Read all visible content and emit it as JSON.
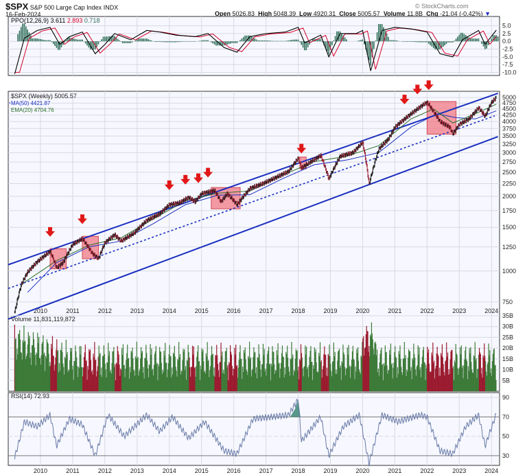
{
  "header": {
    "symbol": "$SPX",
    "name": "S&P 500 Large Cap Index",
    "exchange": "INDX",
    "date": "16-Feb-2024",
    "open_label": "Open",
    "open": "5026.83",
    "high_label": "High",
    "high": "5048.39",
    "low_label": "Low",
    "low": "4920.31",
    "close_label": "Close",
    "close": "5005.57",
    "volume_label": "Volume",
    "volume": "11.8B",
    "chg_label": "Chg",
    "chg": "-21.04 (-0.42%)",
    "watermark": "© StockCharts.com"
  },
  "ppo_panel": {
    "label": "PPO(12,26,9)",
    "v1": "3.611",
    "v2": "2.893",
    "v3": "0.718"
  },
  "price_panel": {
    "label": "$SPX (Weekly) 5005.57",
    "ma_label": "MA(50) 4421.87",
    "ema_label": "EMA(20) 4704.76"
  },
  "volume_panel": {
    "label": "Volume 11,831,119,872"
  },
  "rsi_panel": {
    "label": "RSI(14) 72.93"
  },
  "colors": {
    "up": "#3c7a38",
    "down": "#9b1b2f",
    "channel": "#1a2fbf",
    "arrow": "#e01818",
    "box": "#f07a84",
    "ppo": "#000000",
    "signal": "#d6002a",
    "hist": "#2f6e58",
    "rsi": "#6678a6",
    "rsi_fill": "#2f7f6f",
    "ma": "#1a2fbf",
    "ema": "#2a6e2a"
  },
  "chart_data": {
    "type": "line",
    "x_ticks": [
      "2010",
      "2011",
      "2012",
      "2013",
      "2014",
      "2015",
      "2016",
      "2017",
      "2018",
      "2019",
      "2020",
      "2021",
      "2022",
      "2023",
      "2024"
    ],
    "price": {
      "scale": "log",
      "ylim": [
        660,
        5300
      ],
      "y_ticks": [
        "750",
        "1000",
        "1250",
        "1500",
        "1750",
        "2000",
        "2250",
        "2500",
        "2750",
        "3000",
        "3250",
        "3500",
        "3750",
        "4000",
        "4250",
        "4500",
        "4750",
        "5000"
      ],
      "series": [
        {
          "name": "$SPX (Weekly)",
          "points": [
            [
              2009.2,
              683
            ],
            [
              2009.4,
              880
            ],
            [
              2009.6,
              990
            ],
            [
              2009.9,
              1090
            ],
            [
              2010.3,
              1200
            ],
            [
              2010.5,
              1030
            ],
            [
              2010.7,
              1080
            ],
            [
              2011.0,
              1280
            ],
            [
              2011.3,
              1350
            ],
            [
              2011.6,
              1180
            ],
            [
              2011.8,
              1120
            ],
            [
              2012.0,
              1300
            ],
            [
              2012.3,
              1400
            ],
            [
              2012.5,
              1320
            ],
            [
              2012.9,
              1420
            ],
            [
              2013.3,
              1600
            ],
            [
              2013.7,
              1700
            ],
            [
              2014.0,
              1850
            ],
            [
              2014.3,
              1880
            ],
            [
              2014.6,
              1980
            ],
            [
              2014.8,
              1900
            ],
            [
              2015.0,
              2050
            ],
            [
              2015.4,
              2110
            ],
            [
              2015.6,
              1900
            ],
            [
              2015.8,
              2050
            ],
            [
              2016.1,
              1850
            ],
            [
              2016.5,
              2150
            ],
            [
              2016.9,
              2250
            ],
            [
              2017.3,
              2380
            ],
            [
              2017.7,
              2520
            ],
            [
              2018.0,
              2850
            ],
            [
              2018.1,
              2600
            ],
            [
              2018.7,
              2920
            ],
            [
              2018.95,
              2350
            ],
            [
              2019.3,
              2900
            ],
            [
              2019.7,
              3000
            ],
            [
              2020.0,
              3300
            ],
            [
              2020.2,
              2237
            ],
            [
              2020.5,
              3100
            ],
            [
              2020.8,
              3400
            ],
            [
              2021.0,
              3800
            ],
            [
              2021.5,
              4300
            ],
            [
              2021.9,
              4700
            ],
            [
              2022.0,
              4780
            ],
            [
              2022.4,
              4000
            ],
            [
              2022.7,
              3800
            ],
            [
              2022.8,
              3570
            ],
            [
              2023.0,
              3900
            ],
            [
              2023.3,
              4100
            ],
            [
              2023.6,
              4550
            ],
            [
              2023.8,
              4200
            ],
            [
              2024.0,
              4780
            ],
            [
              2024.15,
              5005
            ]
          ]
        },
        {
          "name": "MA(50)",
          "points": [
            [
              2009.6,
              820
            ],
            [
              2010.5,
              1080
            ],
            [
              2011.5,
              1250
            ],
            [
              2012.5,
              1320
            ],
            [
              2013.5,
              1550
            ],
            [
              2014.5,
              1850
            ],
            [
              2015.5,
              2020
            ],
            [
              2016.5,
              2030
            ],
            [
              2017.5,
              2350
            ],
            [
              2018.5,
              2680
            ],
            [
              2019.5,
              2800
            ],
            [
              2020.5,
              3000
            ],
            [
              2021.5,
              3800
            ],
            [
              2022.3,
              4300
            ],
            [
              2022.9,
              4150
            ],
            [
              2023.5,
              4100
            ],
            [
              2024.15,
              4421
            ]
          ]
        },
        {
          "name": "EMA(20)",
          "points": [
            [
              2009.5,
              900
            ],
            [
              2010.5,
              1100
            ],
            [
              2011.5,
              1270
            ],
            [
              2012.5,
              1360
            ],
            [
              2013.5,
              1620
            ],
            [
              2014.5,
              1920
            ],
            [
              2015.5,
              2060
            ],
            [
              2016.5,
              2100
            ],
            [
              2017.5,
              2430
            ],
            [
              2018.5,
              2760
            ],
            [
              2019.5,
              2900
            ],
            [
              2020.5,
              3200
            ],
            [
              2021.5,
              4100
            ],
            [
              2022.2,
              4500
            ],
            [
              2022.8,
              3950
            ],
            [
              2023.5,
              4300
            ],
            [
              2024.15,
              4704
            ]
          ]
        }
      ],
      "channel_upper": [
        [
          2009.0,
          1060
        ],
        [
          2024.2,
          5200
        ]
      ],
      "channel_mid_dotted": [
        [
          2009.0,
          850
        ],
        [
          2024.1,
          4220
        ]
      ],
      "channel_lower": [
        [
          2009.0,
          640
        ],
        [
          2024.2,
          3480
        ]
      ],
      "arrows": [
        2010.3,
        2011.3,
        2014.0,
        2014.5,
        2014.9,
        2015.2,
        2018.1,
        2021.3,
        2021.7,
        2022.05
      ],
      "boxes": [
        [
          2010.3,
          2010.8,
          1020,
          1230
        ],
        [
          2011.3,
          2011.8,
          1120,
          1380
        ],
        [
          2015.3,
          2016.2,
          1780,
          2170
        ],
        [
          2018.05,
          2018.25,
          2580,
          2880
        ],
        [
          2022.0,
          2022.9,
          3560,
          4820
        ]
      ]
    },
    "ppo": {
      "ylim": [
        -11,
        8
      ],
      "y_ticks": [
        "5.0",
        "2.5",
        "0.0",
        "-2.5",
        "-5.0",
        "-7.5",
        "-10.0"
      ],
      "series": [
        {
          "name": "PPO(12,26,9)",
          "points": [
            [
              2009.2,
              -10.5
            ],
            [
              2009.5,
              1.0
            ],
            [
              2009.9,
              3.5
            ],
            [
              2010.3,
              4.5
            ],
            [
              2010.6,
              -1.0
            ],
            [
              2010.9,
              1.5
            ],
            [
              2011.3,
              3.0
            ],
            [
              2011.7,
              -4.0
            ],
            [
              2012.0,
              -1.0
            ],
            [
              2012.3,
              2.5
            ],
            [
              2012.8,
              0.5
            ],
            [
              2013.3,
              3.5
            ],
            [
              2013.7,
              3.0
            ],
            [
              2014.2,
              2.0
            ],
            [
              2014.8,
              1.5
            ],
            [
              2015.2,
              2.5
            ],
            [
              2015.7,
              -2.0
            ],
            [
              2016.1,
              -3.5
            ],
            [
              2016.5,
              1.5
            ],
            [
              2017.0,
              2.5
            ],
            [
              2017.6,
              3.0
            ],
            [
              2018.0,
              4.5
            ],
            [
              2018.2,
              -0.5
            ],
            [
              2018.7,
              2.0
            ],
            [
              2018.95,
              -5.0
            ],
            [
              2019.3,
              2.5
            ],
            [
              2019.8,
              2.5
            ],
            [
              2020.0,
              3.5
            ],
            [
              2020.25,
              -9.5
            ],
            [
              2020.6,
              3.5
            ],
            [
              2021.0,
              4.5
            ],
            [
              2021.5,
              4.0
            ],
            [
              2022.0,
              3.0
            ],
            [
              2022.4,
              -4.0
            ],
            [
              2022.8,
              -5.0
            ],
            [
              2023.1,
              0.5
            ],
            [
              2023.6,
              3.5
            ],
            [
              2023.8,
              -1.0
            ],
            [
              2024.15,
              3.611
            ]
          ]
        }
      ]
    },
    "volume": {
      "ylim": [
        0,
        35
      ],
      "unit": "B",
      "y_ticks": [
        "5B",
        "10B",
        "15B",
        "20B",
        "25B",
        "30B",
        "35B"
      ]
    },
    "rsi": {
      "ylim": [
        20,
        95
      ],
      "y_ticks": [
        "90",
        "70",
        "50",
        "30"
      ],
      "series": [
        {
          "name": "RSI(14)",
          "points": [
            [
              2009.2,
              28
            ],
            [
              2009.5,
              65
            ],
            [
              2009.9,
              60
            ],
            [
              2010.3,
              72
            ],
            [
              2010.5,
              40
            ],
            [
              2010.9,
              68
            ],
            [
              2011.3,
              62
            ],
            [
              2011.7,
              30
            ],
            [
              2012.1,
              72
            ],
            [
              2012.6,
              50
            ],
            [
              2013.3,
              72
            ],
            [
              2013.7,
              55
            ],
            [
              2014.1,
              70
            ],
            [
              2014.6,
              48
            ],
            [
              2015.1,
              65
            ],
            [
              2015.7,
              35
            ],
            [
              2016.1,
              32
            ],
            [
              2016.6,
              68
            ],
            [
              2017.2,
              70
            ],
            [
              2017.7,
              72
            ],
            [
              2018.0,
              88
            ],
            [
              2018.1,
              45
            ],
            [
              2018.7,
              70
            ],
            [
              2018.95,
              30
            ],
            [
              2019.4,
              60
            ],
            [
              2019.9,
              72
            ],
            [
              2020.2,
              22
            ],
            [
              2020.6,
              72
            ],
            [
              2021.1,
              65
            ],
            [
              2021.8,
              72
            ],
            [
              2022.0,
              70
            ],
            [
              2022.4,
              35
            ],
            [
              2022.8,
              32
            ],
            [
              2023.2,
              60
            ],
            [
              2023.6,
              72
            ],
            [
              2023.8,
              40
            ],
            [
              2024.15,
              72.93
            ]
          ]
        }
      ]
    }
  }
}
